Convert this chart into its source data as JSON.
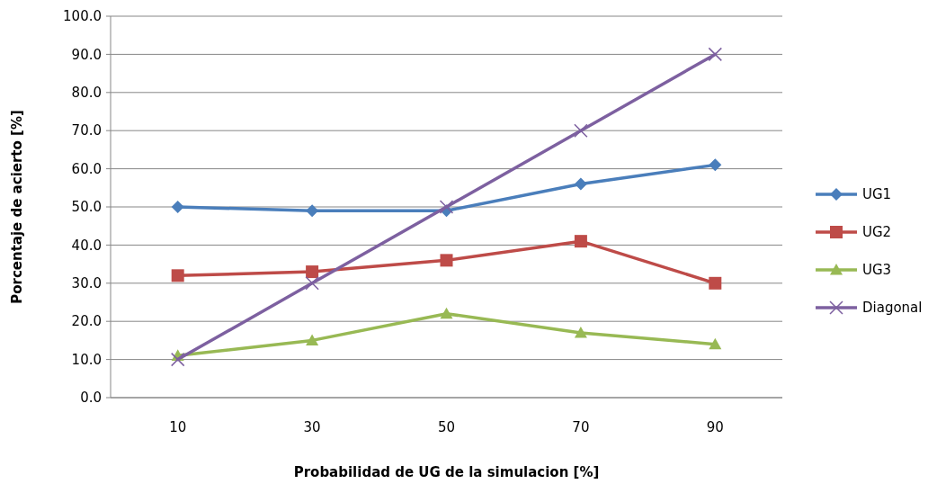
{
  "chart_data": {
    "type": "line",
    "xlabel": "Probabilidad  de UG de la simulacion  [%]",
    "ylabel": "Porcentaje de acierto [%]",
    "categories": [
      "10",
      "30",
      "50",
      "70",
      "90"
    ],
    "series": [
      {
        "name": "UG1",
        "color": "#4a7ebb",
        "marker": "diamond",
        "values": [
          50,
          49,
          49,
          56,
          61
        ]
      },
      {
        "name": "UG2",
        "color": "#be4b48",
        "marker": "square",
        "values": [
          32,
          33,
          36,
          41,
          30
        ]
      },
      {
        "name": "UG3",
        "color": "#98b954",
        "marker": "triangle",
        "values": [
          11,
          15,
          22,
          17,
          14
        ]
      },
      {
        "name": "Diagonal",
        "color": "#7d60a0",
        "marker": "cross",
        "values": [
          10,
          30,
          50,
          70,
          90
        ]
      }
    ],
    "ylim": [
      0,
      100
    ],
    "yticks": [
      {
        "value": 0,
        "label": "0.0"
      },
      {
        "value": 10,
        "label": "10.0"
      },
      {
        "value": 20,
        "label": "20.0"
      },
      {
        "value": 30,
        "label": "30.0"
      },
      {
        "value": 40,
        "label": "40.0"
      },
      {
        "value": 50,
        "label": "50.0"
      },
      {
        "value": 60,
        "label": "60.0"
      },
      {
        "value": 70,
        "label": "70.0"
      },
      {
        "value": 80,
        "label": "80.0"
      },
      {
        "value": 90,
        "label": "90.0"
      },
      {
        "value": 100,
        "label": "100.0"
      }
    ],
    "grid": "y",
    "legend": "right"
  }
}
